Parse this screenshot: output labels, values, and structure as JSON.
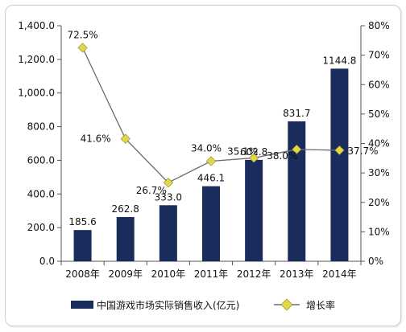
{
  "chart_data": {
    "type": "bar+line",
    "categories": [
      "2008年",
      "2009年",
      "2010年",
      "2011年",
      "2012年",
      "2013年",
      "2014年"
    ],
    "series": [
      {
        "name": "中国游戏市场实际销售收入(亿元)",
        "kind": "bar",
        "axis": "left",
        "values": [
          185.6,
          262.8,
          333.0,
          446.1,
          602.8,
          831.7,
          1144.8
        ],
        "labels": [
          "185.6",
          "262.8",
          "333.0",
          "446.1",
          "602.8",
          "831.7",
          "1144.8"
        ],
        "color": "#1a2c5c"
      },
      {
        "name": "增长率",
        "kind": "line",
        "axis": "right",
        "values": [
          72.5,
          41.6,
          26.7,
          34.0,
          35.1,
          38.0,
          37.7
        ],
        "labels": [
          "72.5%",
          "41.6%",
          "26.7%",
          "34.0%",
          "35.1%",
          "38.0%",
          "37.7%"
        ],
        "line_color": "#6b6b6b",
        "marker_color": "#e0d84a"
      }
    ],
    "y_left": {
      "range": [
        0,
        1400
      ],
      "ticks": [
        "0.0",
        "200.0",
        "400.0",
        "600.0",
        "800.0",
        "1,000.0",
        "1,200.0",
        "1,400.0"
      ]
    },
    "y_right": {
      "range": [
        0,
        80
      ],
      "ticks": [
        "0%",
        "10%",
        "20%",
        "30%",
        "40%",
        "50%",
        "60%",
        "70%",
        "80%"
      ]
    },
    "grid": false,
    "legend_position": "bottom"
  }
}
